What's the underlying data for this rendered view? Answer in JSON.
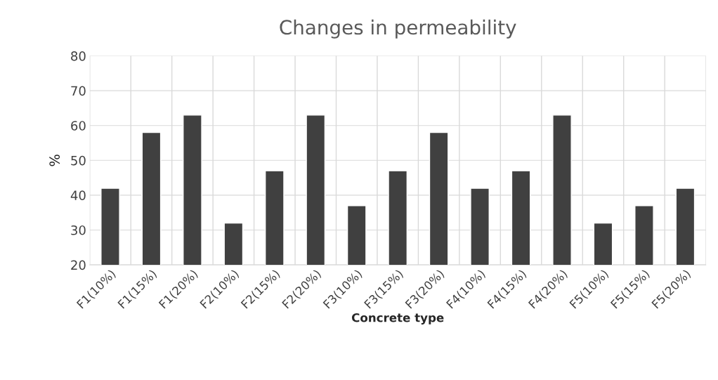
{
  "chart_data": {
    "type": "bar",
    "title": "Changes in permeability",
    "xlabel": "Concrete type",
    "ylabel": "%",
    "categories": [
      "F1(10%)",
      "F1(15%)",
      "F1(20%)",
      "F2(10%)",
      "F2(15%)",
      "F2(20%)",
      "F3(10%)",
      "F3(15%)",
      "F3(20%)",
      "F4(10%)",
      "F4(15%)",
      "F4(20%)",
      "F5(10%)",
      "F5(15%)",
      "F5(20%)"
    ],
    "values": [
      42,
      58,
      63,
      32,
      47,
      63,
      37,
      47,
      58,
      42,
      47,
      63,
      32,
      37,
      42
    ],
    "color": "#404040",
    "ylim": [
      20,
      80
    ],
    "yticks": [
      20,
      30,
      40,
      50,
      60,
      70,
      80
    ],
    "grid": true
  }
}
